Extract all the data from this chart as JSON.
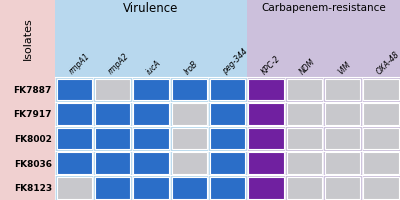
{
  "isolates": [
    "FK7887",
    "FK7917",
    "FK8002",
    "FK8036",
    "FK8123"
  ],
  "columns": [
    "rmpA1",
    "rmpA2",
    "iucA",
    "IroB",
    "peg-344",
    "KPC-2",
    "NDM",
    "VIM",
    "OXA-48"
  ],
  "n_virulence": 5,
  "n_resistance": 4,
  "presence_matrix": [
    [
      1,
      0,
      1,
      1,
      1,
      2,
      0,
      0,
      0
    ],
    [
      1,
      1,
      1,
      0,
      1,
      2,
      0,
      0,
      0
    ],
    [
      1,
      1,
      1,
      0,
      1,
      2,
      0,
      0,
      0
    ],
    [
      1,
      1,
      1,
      0,
      1,
      2,
      0,
      0,
      0
    ],
    [
      0,
      1,
      1,
      1,
      1,
      2,
      0,
      0,
      0
    ]
  ],
  "color_absent": "#c8c8cc",
  "color_blue": "#2b6ec8",
  "color_purple": "#7020a0",
  "virulence_bg": "#b8d8ee",
  "resistance_bg": "#ccc0dc",
  "isolates_bg": "#f0d0d0",
  "data_row_bg": "#e8e8e8",
  "header_virulence": "Virulence",
  "header_resistance": "Carbapenem-resistance",
  "header_isolates": "Isolates",
  "absent_dot_color": "#b0b0b8"
}
